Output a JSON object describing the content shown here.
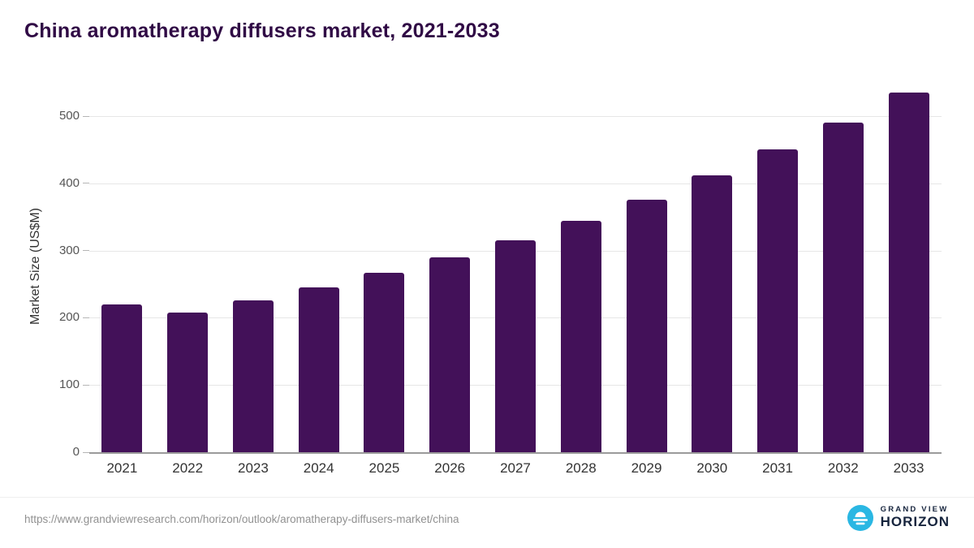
{
  "title": "China aromatherapy diffusers market, 2021-2033",
  "chart_data": {
    "type": "bar",
    "title": "China aromatherapy diffusers market, 2021-2033",
    "categories": [
      "2021",
      "2022",
      "2023",
      "2024",
      "2025",
      "2026",
      "2027",
      "2028",
      "2029",
      "2030",
      "2031",
      "2032",
      "2033"
    ],
    "values": [
      220,
      208,
      226,
      245,
      267,
      290,
      315,
      344,
      376,
      412,
      450,
      490,
      535
    ],
    "xlabel": "",
    "ylabel": "Market Size (US$M)",
    "ylim": [
      0,
      552
    ],
    "yticks": [
      0,
      100,
      200,
      300,
      400,
      500
    ],
    "grid": true,
    "legend_position": "none",
    "bar_color": "#431159"
  },
  "footer": {
    "source_url": "https://www.grandviewresearch.com/horizon/outlook/aromatherapy-diffusers-market/china",
    "logo": {
      "line1": "GRAND VIEW",
      "line2": "HORIZON"
    }
  },
  "colors": {
    "bar": "#431159",
    "title_text": "#300a45",
    "gridline": "#e6e6e6",
    "axis_line": "#9a9a9a",
    "logo_teal": "#2ab7e3",
    "logo_navy": "#16243d",
    "url_text": "#919191"
  }
}
